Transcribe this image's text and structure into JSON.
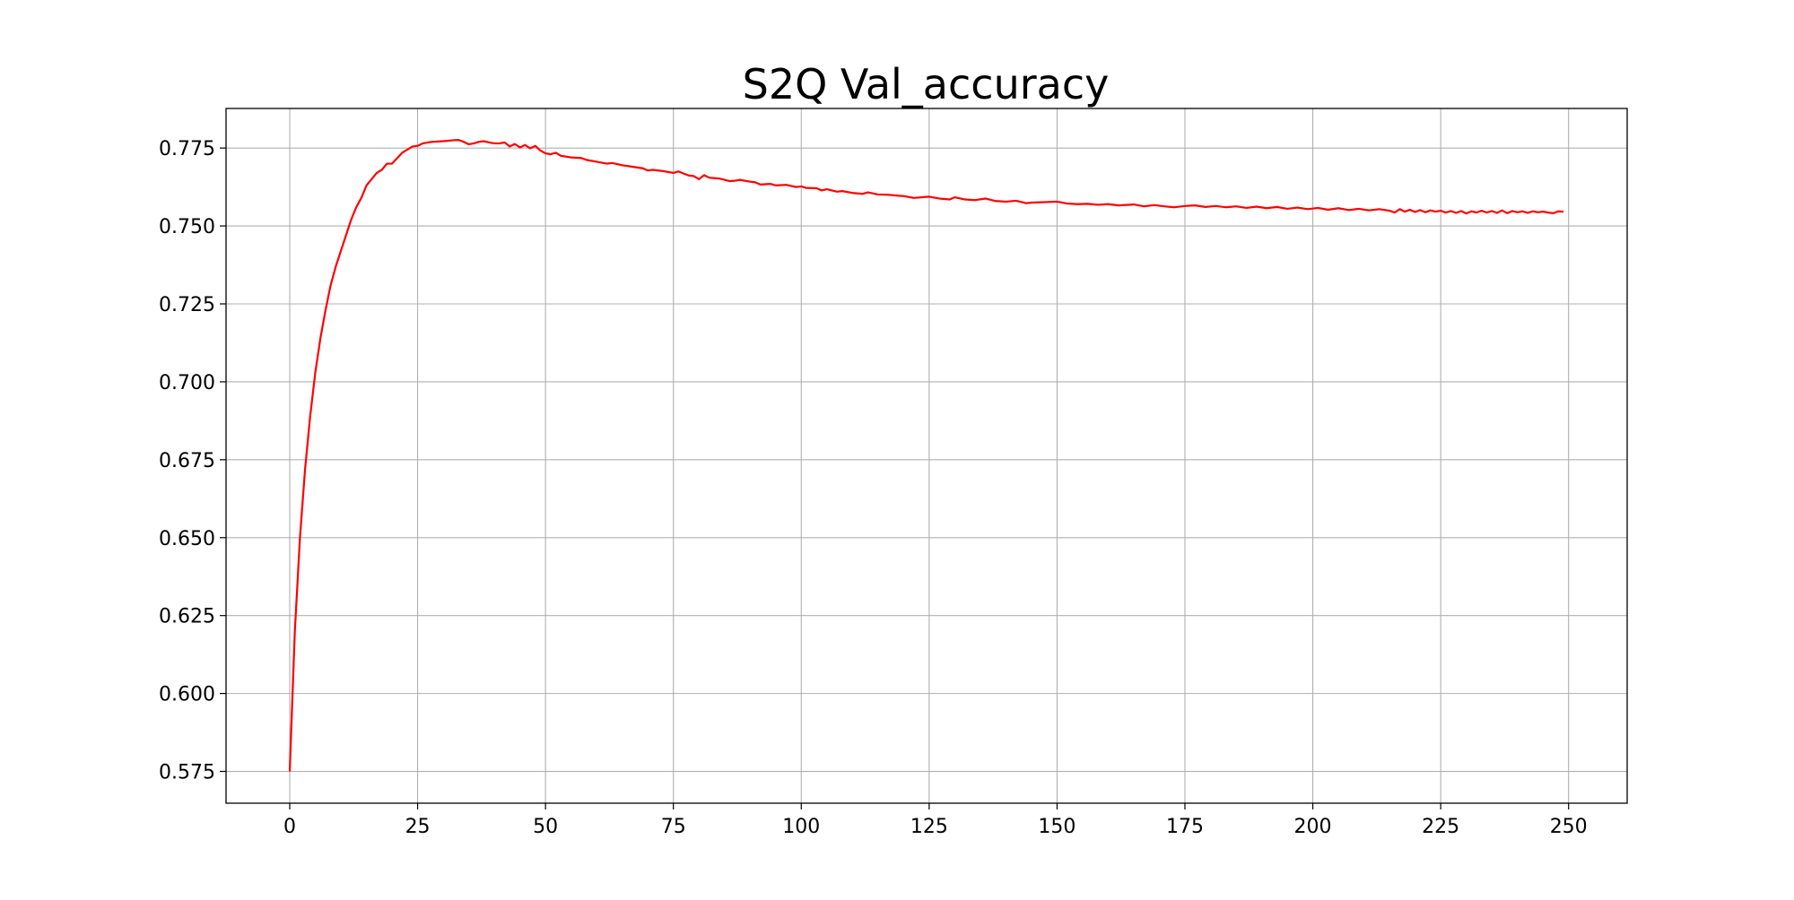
{
  "chart_data": {
    "type": "line",
    "title": "S2Q Val_accuracy",
    "xlabel": "",
    "ylabel": "",
    "xlim": [
      -12.45,
      261.45
    ],
    "ylim": [
      0.5648,
      0.7877
    ],
    "x_ticks": [
      0,
      25,
      50,
      75,
      100,
      125,
      150,
      175,
      200,
      225,
      250
    ],
    "y_ticks": [
      0.575,
      0.6,
      0.625,
      0.65,
      0.675,
      0.7,
      0.725,
      0.75,
      0.775
    ],
    "x_tick_labels": [
      "0",
      "25",
      "50",
      "75",
      "100",
      "125",
      "150",
      "175",
      "200",
      "225",
      "250"
    ],
    "y_tick_labels": [
      "0.575",
      "0.600",
      "0.625",
      "0.650",
      "0.675",
      "0.700",
      "0.725",
      "0.750",
      "0.775"
    ],
    "grid": true,
    "series": [
      {
        "color": "#ff0000",
        "x": [
          0,
          1,
          2,
          3,
          4,
          5,
          6,
          7,
          8,
          9,
          10,
          11,
          12,
          13,
          14,
          15,
          16,
          17,
          18,
          19,
          20,
          22,
          24,
          25,
          26,
          27,
          28,
          30,
          32,
          33,
          34,
          35,
          36,
          37,
          38,
          39,
          40,
          41,
          42,
          43,
          44,
          45,
          46,
          47,
          48,
          49,
          50,
          51,
          52,
          53,
          55,
          57,
          58,
          60,
          62,
          63,
          65,
          67,
          69,
          70,
          71,
          73,
          75,
          76,
          77,
          78,
          79,
          80,
          81,
          82,
          84,
          86,
          87,
          88,
          90,
          91,
          92,
          94,
          95,
          97,
          99,
          100,
          101,
          103,
          104,
          105,
          107,
          108,
          110,
          112,
          113,
          115,
          117,
          119,
          120,
          122,
          125,
          127,
          129,
          130,
          132,
          134,
          136,
          138,
          140,
          142,
          144,
          145,
          147,
          150,
          152,
          154,
          156,
          158,
          160,
          162,
          165,
          167,
          169,
          171,
          173,
          175,
          177,
          179,
          181,
          183,
          185,
          187,
          189,
          191,
          193,
          195,
          197,
          199,
          201,
          203,
          205,
          207,
          209,
          211,
          213,
          215,
          216,
          217,
          218,
          219,
          220,
          221,
          222,
          223,
          224,
          225,
          226,
          227,
          228,
          229,
          230,
          231,
          232,
          233,
          234,
          235,
          236,
          237,
          238,
          239,
          240,
          241,
          242,
          243,
          244,
          245,
          246,
          247,
          248,
          249
        ],
        "values": [
          0.575,
          0.62,
          0.65,
          0.672,
          0.689,
          0.703,
          0.714,
          0.723,
          0.731,
          0.737,
          0.742,
          0.747,
          0.752,
          0.756,
          0.759,
          0.763,
          0.765,
          0.767,
          0.768,
          0.77,
          0.77,
          0.7735,
          0.7755,
          0.7757,
          0.7765,
          0.7768,
          0.777,
          0.7772,
          0.7775,
          0.7776,
          0.777,
          0.7762,
          0.7765,
          0.777,
          0.7772,
          0.7768,
          0.7765,
          0.7765,
          0.7768,
          0.7755,
          0.7763,
          0.7752,
          0.776,
          0.7749,
          0.7757,
          0.7742,
          0.7733,
          0.773,
          0.7735,
          0.7725,
          0.772,
          0.7718,
          0.7712,
          0.7706,
          0.77,
          0.7702,
          0.7695,
          0.769,
          0.7685,
          0.7678,
          0.768,
          0.7676,
          0.767,
          0.7675,
          0.7668,
          0.7662,
          0.766,
          0.765,
          0.7663,
          0.7655,
          0.7652,
          0.7644,
          0.7645,
          0.7648,
          0.7642,
          0.764,
          0.7633,
          0.7635,
          0.763,
          0.7632,
          0.7625,
          0.7627,
          0.7622,
          0.7621,
          0.7614,
          0.7618,
          0.761,
          0.7612,
          0.7606,
          0.7603,
          0.7608,
          0.7601,
          0.76,
          0.7597,
          0.7596,
          0.759,
          0.7594,
          0.7588,
          0.7585,
          0.7592,
          0.7585,
          0.7583,
          0.7588,
          0.758,
          0.7578,
          0.7581,
          0.7573,
          0.7575,
          0.7576,
          0.7578,
          0.7572,
          0.757,
          0.7571,
          0.7568,
          0.757,
          0.7566,
          0.7569,
          0.7563,
          0.7567,
          0.7563,
          0.756,
          0.7564,
          0.7566,
          0.7561,
          0.7564,
          0.756,
          0.7563,
          0.7558,
          0.7562,
          0.7557,
          0.7561,
          0.7555,
          0.7559,
          0.7554,
          0.7558,
          0.7552,
          0.7557,
          0.7551,
          0.7555,
          0.755,
          0.7554,
          0.7549,
          0.7543,
          0.7554,
          0.7546,
          0.7552,
          0.7545,
          0.7551,
          0.7544,
          0.755,
          0.7546,
          0.7549,
          0.7543,
          0.7548,
          0.7542,
          0.7548,
          0.754,
          0.7547,
          0.7543,
          0.7549,
          0.7543,
          0.7548,
          0.7542,
          0.755,
          0.7541,
          0.7548,
          0.7544,
          0.7547,
          0.7542,
          0.7547,
          0.7544,
          0.7546,
          0.7543,
          0.7541,
          0.7547,
          0.7546
        ]
      }
    ]
  }
}
